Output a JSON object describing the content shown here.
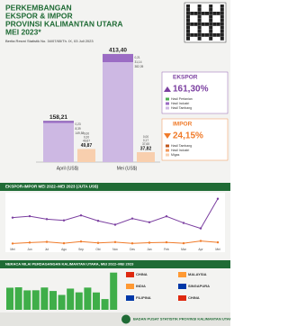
{
  "header": {
    "title_lines": [
      "PERKEMBANGAN",
      "EKSPOR & IMPOR",
      "PROVINSI KALIMANTAN UTARA",
      "MEI 2023*"
    ],
    "subtitle": "Berita Resmi Statistik No. 34/07/65/Th. IX, 03 Juli 2023"
  },
  "chart_data": [
    {
      "type": "stacked_bar",
      "categories": [
        "April (US$)",
        "Mei (US$)"
      ],
      "ylim": [
        0,
        420
      ],
      "groups": [
        {
          "name": "EKSPOR",
          "color": "#7b3fa0",
          "change": {
            "value": 161.3,
            "label": "161,30%"
          },
          "direction": "up",
          "total": {
            "values": [
              158.21,
              413.4
            ],
            "value_labels": [
              "158,21",
              "413,40"
            ]
          },
          "series": [
            {
              "name": "Hasil Pertanian",
              "color": "#4caf50",
              "values": [
                0.23,
                0.21
              ],
              "value_labels": [
                "0,23",
                "0,21"
              ]
            },
            {
              "name": "Hasil Industri",
              "color": "#9b6cc4",
              "values": [
                8.39,
                31.14
              ],
              "value_labels": [
                "8,39",
                "31,14"
              ]
            },
            {
              "name": "Hasil Tambang",
              "color": "#cdb8e3",
              "values": [
                149.58,
                382.05
              ],
              "value_labels": [
                "149,58",
                "382,05"
              ]
            }
          ]
        },
        {
          "name": "IMPOR",
          "color": "#f07b2a",
          "change": {
            "value": 24.15,
            "label": "24,15%"
          },
          "direction": "down",
          "total": {
            "values": [
              49.87,
              37.82
            ],
            "value_labels": [
              "49,87",
              "37,82"
            ]
          },
          "series": [
            {
              "name": "Hasil Tambang",
              "color": "#c0571c",
              "values": [
                0.0,
                0.0
              ],
              "value_labels": [
                "0,00",
                "0,00"
              ]
            },
            {
              "name": "Hasil Industri",
              "color": "#f39a5c",
              "values": [
                0.2,
                0.17
              ],
              "value_labels": [
                "0,20",
                "0,17"
              ]
            },
            {
              "name": "Migas",
              "color": "#f8cfae",
              "values": [
                49.67,
                37.65
              ],
              "value_labels": [
                "49,67",
                "37,65"
              ]
            }
          ]
        }
      ]
    },
    {
      "type": "line",
      "title": "EKSPOR-IMPOR MEI 2022–MEI 2023 (JUTA US$)",
      "categories": [
        "Mei",
        "Jun",
        "Jul",
        "Agu",
        "Sep",
        "Okt",
        "Nov",
        "Des",
        "Jan",
        "Feb",
        "Mar",
        "Apr",
        "Mei"
      ],
      "ylim": [
        0,
        450
      ],
      "series": [
        {
          "name": "Ekspor",
          "color": "#7b3fa0",
          "values": [
            251,
            263,
            238,
            227,
            270,
            223,
            190,
            243,
            211,
            262,
            205,
            158.21,
            413.4
          ]
        },
        {
          "name": "Impor",
          "color": "#f07b2a",
          "values": [
            28,
            36,
            42,
            30,
            45,
            33,
            40,
            29,
            35,
            38,
            30,
            49.87,
            37.82
          ]
        }
      ]
    },
    {
      "type": "bar",
      "title": "NERACA NILAI PERDAGANGAN KALIMANTAN UTARA, MEI 2022–MEI 2023",
      "color": "#3fae49",
      "ylim": [
        0,
        400
      ],
      "values": [
        223,
        227,
        196,
        197,
        225,
        190,
        150,
        214,
        176,
        224,
        175,
        108.34,
        375.58
      ]
    }
  ],
  "countries": {
    "ekspor": [
      "CHINA",
      "INDIA",
      "FILIPINA"
    ],
    "impor": [
      "MALAYSIA",
      "SINGAPURA",
      "CHINA"
    ]
  },
  "footer": "BADAN PUSAT STATISTIK PROVINSI KALIMANTAN UTARA"
}
